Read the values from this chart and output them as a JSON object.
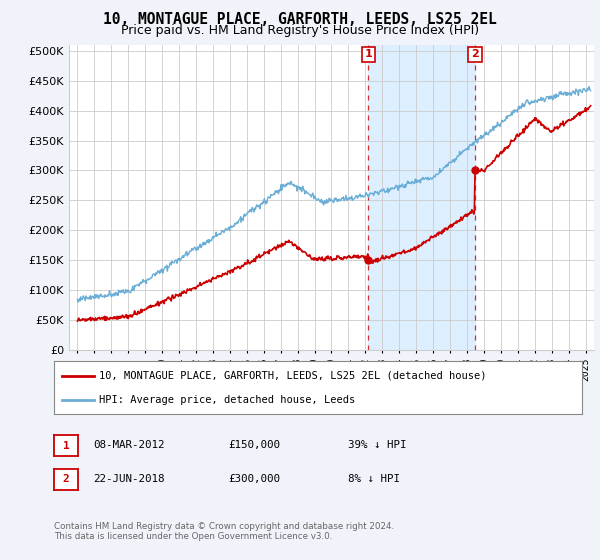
{
  "title": "10, MONTAGUE PLACE, GARFORTH, LEEDS, LS25 2EL",
  "subtitle": "Price paid vs. HM Land Registry's House Price Index (HPI)",
  "ytick_values": [
    0,
    50000,
    100000,
    150000,
    200000,
    250000,
    300000,
    350000,
    400000,
    450000,
    500000
  ],
  "ylim": [
    0,
    510000
  ],
  "xlim_start": 1994.5,
  "xlim_end": 2025.5,
  "purchase1_date": 2012.18,
  "purchase1_price": 150000,
  "purchase2_date": 2018.47,
  "purchase2_price": 300000,
  "hpi_color": "#6aaed6",
  "price_color": "#cc0000",
  "shade_color": "#ddeeff",
  "background_color": "#f0f4fa",
  "plot_bg_color": "#ffffff",
  "legend_entry1": "10, MONTAGUE PLACE, GARFORTH, LEEDS, LS25 2EL (detached house)",
  "legend_entry2": "HPI: Average price, detached house, Leeds",
  "table_row1": [
    "1",
    "08-MAR-2012",
    "£150,000",
    "39% ↓ HPI"
  ],
  "table_row2": [
    "2",
    "22-JUN-2018",
    "£300,000",
    "8% ↓ HPI"
  ],
  "footnote": "Contains HM Land Registry data © Crown copyright and database right 2024.\nThis data is licensed under the Open Government Licence v3.0.",
  "title_fontsize": 10.5,
  "subtitle_fontsize": 9,
  "tick_fontsize": 8
}
